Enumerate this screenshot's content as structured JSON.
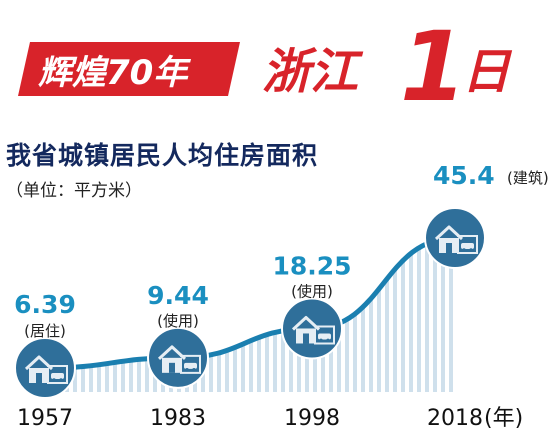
{
  "banner": {
    "left_text": "辉煌70年",
    "right_text_1": "浙江",
    "right_num": "1",
    "right_text_2": "日",
    "accent_color": "#d8232a",
    "dark_color": "#1b2f66"
  },
  "chart_data": {
    "type": "area",
    "title": "我省城镇居民人均住房面积",
    "unit": "（单位：平方米）",
    "x_unit": "(年)",
    "categories": [
      "1957",
      "1983",
      "1998",
      "2018"
    ],
    "values": [
      6.39,
      9.44,
      18.25,
      45.4
    ],
    "value_labels": [
      "6.39",
      "9.44",
      "18.25",
      "45.4"
    ],
    "annotations": [
      "(居住)",
      "(使用)",
      "(使用)",
      "(建筑)"
    ],
    "line_color": "#1a7fb0",
    "value_color": "#1a8fc0",
    "icon_bg": "#2f6f9a",
    "icon_fill": "#e6eef4",
    "markers": [
      "house-icon",
      "house-icon",
      "house-icon",
      "house-icon"
    ]
  }
}
